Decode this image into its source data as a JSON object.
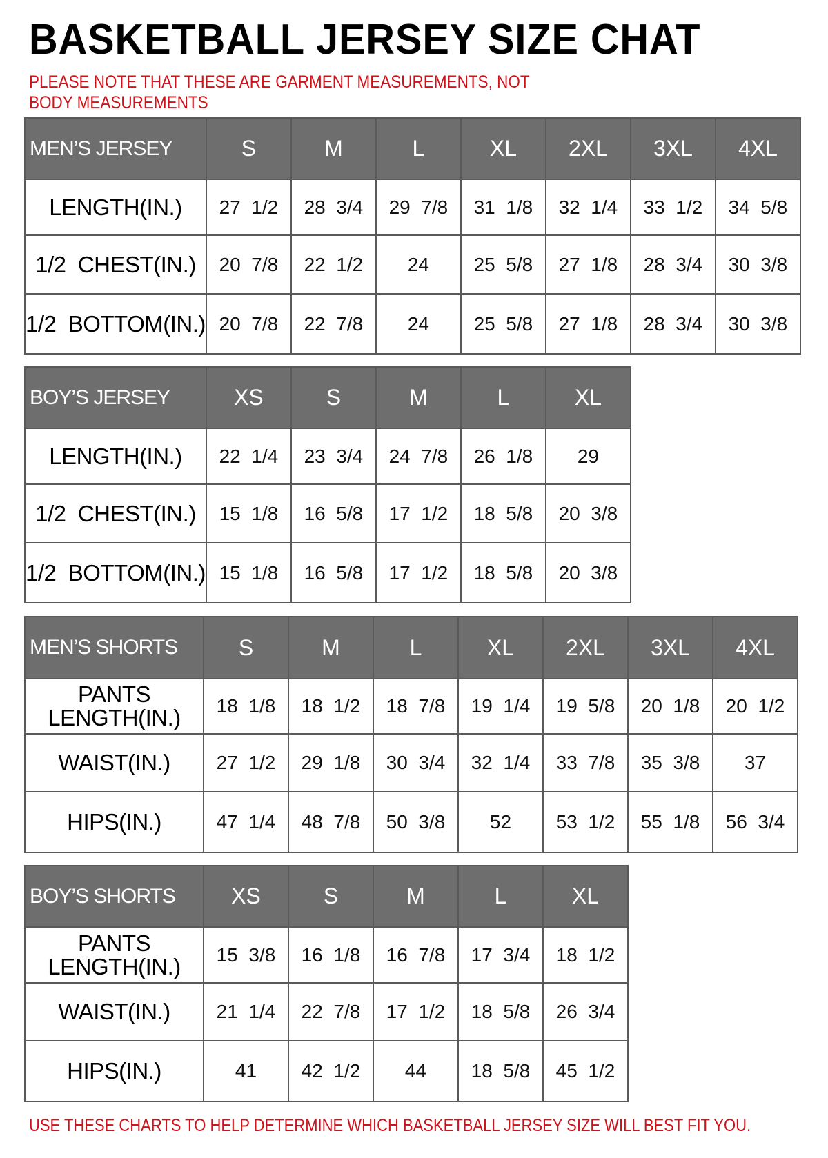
{
  "title": "BASKETBALL JERSEY SIZE CHAT",
  "note": "PLEASE NOTE THAT THESE ARE GARMENT MEASUREMENTS, NOT BODY MEASUREMENTS",
  "footer": "USE THESE CHARTS TO HELP DETERMINE WHICH BASKETBALL JERSEY SIZE WILL BEST FIT YOU.",
  "colors": {
    "header_bg": "#6e6e6e",
    "note_red": "#d0121b",
    "border": "#5a5a5a"
  },
  "tables": [
    {
      "name": "MEN’S JERSEY",
      "sizes": [
        "S",
        "M",
        "L",
        "XL",
        "2XL",
        "3XL",
        "4XL"
      ],
      "rows": [
        {
          "label": "LENGTH(IN.)",
          "values": [
            "27  1/2",
            "28  3/4",
            "29  7/8",
            "31  1/8",
            "32  1/4",
            "33  1/2",
            "34  5/8"
          ]
        },
        {
          "label": "1/2  CHEST(IN.)",
          "values": [
            "20  7/8",
            "22  1/2",
            "24",
            "25  5/8",
            "27  1/8",
            "28  3/4",
            "30  3/8"
          ]
        },
        {
          "label": "1/2  BOTTOM(IN.)",
          "values": [
            "20  7/8",
            "22  7/8",
            "24",
            "25  5/8",
            "27  1/8",
            "28  3/4",
            "30  3/8"
          ]
        }
      ]
    },
    {
      "name": "BOY’S JERSEY",
      "sizes": [
        "XS",
        "S",
        "M",
        "L",
        "XL"
      ],
      "rows": [
        {
          "label": "LENGTH(IN.)",
          "values": [
            "22  1/4",
            "23  3/4",
            "24  7/8",
            "26  1/8",
            "29"
          ]
        },
        {
          "label": "1/2  CHEST(IN.)",
          "values": [
            "15  1/8",
            "16  5/8",
            "17  1/2",
            "18  5/8",
            "20  3/8"
          ]
        },
        {
          "label": "1/2  BOTTOM(IN.)",
          "values": [
            "15  1/8",
            "16  5/8",
            "17  1/2",
            "18  5/8",
            "20  3/8"
          ]
        }
      ]
    },
    {
      "name": "MEN’S SHORTS",
      "sizes": [
        "S",
        "M",
        "L",
        "XL",
        "2XL",
        "3XL",
        "4XL"
      ],
      "rows": [
        {
          "label": "PANTS\nLENGTH(IN.)",
          "values": [
            "18  1/8",
            "18  1/2",
            "18  7/8",
            "19  1/4",
            "19  5/8",
            "20  1/8",
            "20  1/2"
          ]
        },
        {
          "label": "WAIST(IN.)",
          "values": [
            "27  1/2",
            "29  1/8",
            "30  3/4",
            "32  1/4",
            "33  7/8",
            "35  3/8",
            "37"
          ]
        },
        {
          "label": "HIPS(IN.)",
          "values": [
            "47  1/4",
            "48  7/8",
            "50  3/8",
            "52",
            "53  1/2",
            "55  1/8",
            "56  3/4"
          ]
        }
      ]
    },
    {
      "name": "BOY’S SHORTS",
      "sizes": [
        "XS",
        "S",
        "M",
        "L",
        "XL"
      ],
      "rows": [
        {
          "label": "PANTS\nLENGTH(IN.)",
          "values": [
            "15  3/8",
            "16  1/8",
            "16  7/8",
            "17  3/4",
            "18  1/2"
          ]
        },
        {
          "label": "WAIST(IN.)",
          "values": [
            "21  1/4",
            "22  7/8",
            "17  1/2",
            "18  5/8",
            "26  3/4"
          ]
        },
        {
          "label": "HIPS(IN.)",
          "values": [
            "41",
            "42  1/2",
            "44",
            "18  5/8",
            "45  1/2"
          ]
        }
      ]
    }
  ]
}
